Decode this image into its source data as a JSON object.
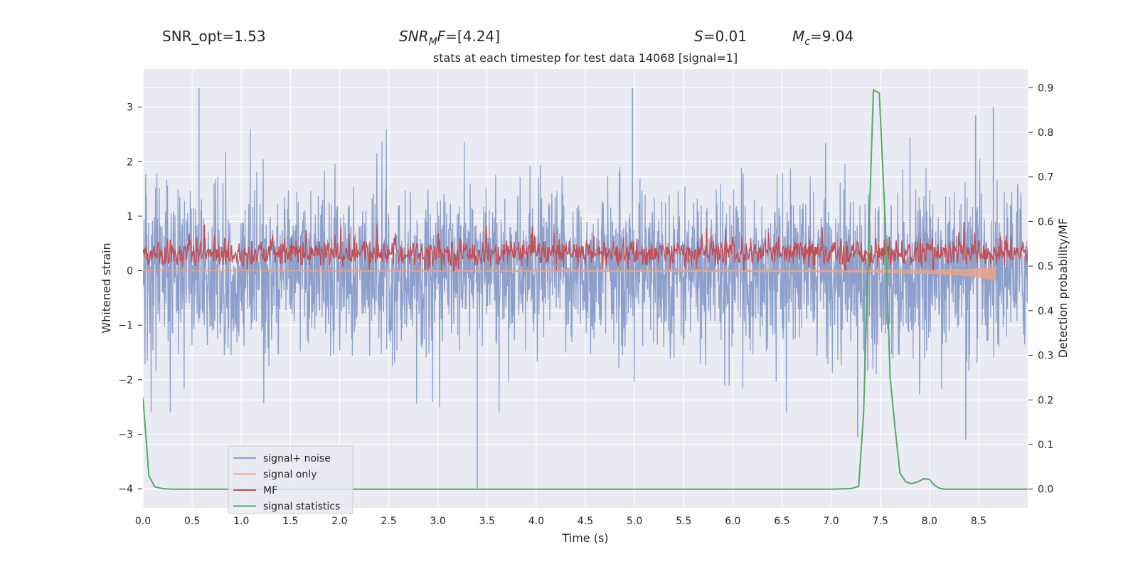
{
  "header": {
    "snr_opt": "SNR_opt=1.53",
    "snr_mf_prefix": "SNR",
    "snr_mf_sub": "M",
    "snr_mf_rest": "F=[4.24]",
    "s_var": "S",
    "s_rest": "=0.01",
    "mc_var": "M",
    "mc_sub": "c",
    "mc_rest": "=9.04"
  },
  "chart_data": {
    "type": "line",
    "title": "stats at each timestep for test data 14068 [signal=1]",
    "xlabel": "Time (s)",
    "ylabel": "Whitened strain",
    "y2label": "Detection probability/MF",
    "xlim": [
      0,
      9
    ],
    "ylim": [
      -4.35,
      3.7
    ],
    "y2lim": [
      -0.042,
      0.942
    ],
    "x_ticks": [
      0.0,
      0.5,
      1.0,
      1.5,
      2.0,
      2.5,
      3.0,
      3.5,
      4.0,
      4.5,
      5.0,
      5.5,
      6.0,
      6.5,
      7.0,
      7.5,
      8.0,
      8.5
    ],
    "x_tick_labels": [
      "0.0",
      "0.5",
      "1.0",
      "1.5",
      "2.0",
      "2.5",
      "3.0",
      "3.5",
      "4.0",
      "4.5",
      "5.0",
      "5.5",
      "6.0",
      "6.5",
      "7.0",
      "7.5",
      "8.0",
      "8.5"
    ],
    "y_ticks": [
      3,
      2,
      1,
      0,
      -1,
      -2,
      -3,
      -4
    ],
    "y_tick_labels": [
      "3",
      "2",
      "1",
      "0",
      "−1",
      "−2",
      "−3",
      "−4"
    ],
    "y2_ticks": [
      0.9,
      0.8,
      0.7,
      0.6,
      0.5,
      0.4,
      0.3,
      0.2,
      0.1,
      0.0
    ],
    "y2_tick_labels": [
      "0.9",
      "0.8",
      "0.7",
      "0.6",
      "0.5",
      "0.4",
      "0.3",
      "0.2",
      "0.1",
      "0.0"
    ],
    "grid": true,
    "legend_position": "lower-left",
    "series": [
      {
        "name": "signal+ noise",
        "axis": "left",
        "color": "#8da0cb",
        "description": "dense noisy whitened strain, mostly within [-1.7, 1.9] with spikes to about 3.35 and -4.0",
        "notable_points": [
          [
            0.57,
            3.35
          ],
          [
            4.98,
            3.35
          ],
          [
            3.4,
            -4.0
          ],
          [
            8.65,
            3.0
          ],
          [
            8.47,
            2.85
          ],
          [
            7.27,
            -3.05
          ],
          [
            8.37,
            -3.1
          ]
        ]
      },
      {
        "name": "signal only",
        "axis": "left",
        "color": "#e8a38a",
        "description": "near-zero chirp waveform growing in amplitude toward merger",
        "x": [
          0,
          7.0,
          7.5,
          8.0,
          8.3,
          8.5,
          8.67
        ],
        "y": [
          0,
          -0.02,
          -0.03,
          -0.05,
          -0.08,
          -0.12,
          -0.18
        ]
      },
      {
        "name": "MF",
        "axis": "left",
        "color": "#c44e52",
        "description": "matched-filter output, noisy band between about 0.0 and 0.9"
      },
      {
        "name": "signal statistics",
        "axis": "right",
        "color": "#55a868",
        "x": [
          0.0,
          0.03,
          0.06,
          0.12,
          0.2,
          0.3,
          1.0,
          2.0,
          3.0,
          4.0,
          5.0,
          6.0,
          7.0,
          7.2,
          7.28,
          7.33,
          7.38,
          7.43,
          7.49,
          7.55,
          7.6,
          7.65,
          7.7,
          7.76,
          7.82,
          7.88,
          7.94,
          8.0,
          8.05,
          8.1,
          8.15,
          8.2,
          9.0
        ],
        "y": [
          0.205,
          0.12,
          0.03,
          0.005,
          0.001,
          0.0,
          0.0,
          0.0,
          0.0,
          0.0,
          0.0,
          0.0,
          0.0,
          0.001,
          0.006,
          0.17,
          0.55,
          0.895,
          0.888,
          0.6,
          0.25,
          0.138,
          0.036,
          0.016,
          0.012,
          0.016,
          0.023,
          0.022,
          0.009,
          0.002,
          0.0,
          0.0,
          0.0
        ]
      }
    ]
  }
}
